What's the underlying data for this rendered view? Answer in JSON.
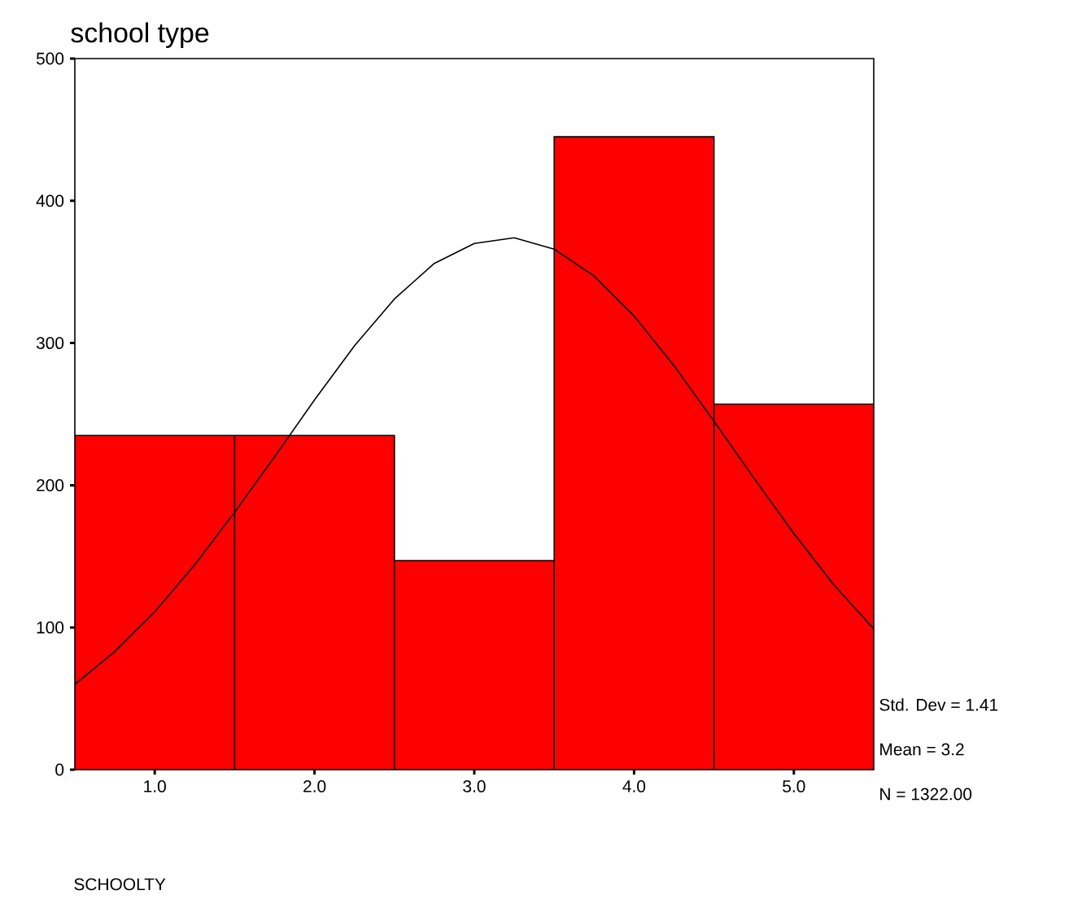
{
  "chart_data": {
    "type": "histogram",
    "title": "school type",
    "bins": [
      0.5,
      1.5,
      2.5,
      3.5,
      4.5,
      5.5
    ],
    "series": [
      {
        "color": "#ff0000",
        "values": [
          235,
          235,
          147,
          445,
          257
        ]
      },
      {
        "type": "line",
        "color": "#000000",
        "x": [
          0.5,
          0.75,
          1.0,
          1.25,
          1.5,
          1.75,
          2.0,
          2.25,
          2.5,
          2.75,
          3.0,
          3.25,
          3.5,
          3.75,
          4.0,
          4.25,
          4.5,
          4.75,
          5.0,
          5.25,
          5.5
        ],
        "values": [
          60,
          83,
          111,
          144,
          181,
          220,
          260,
          298,
          331,
          356,
          370,
          374,
          366,
          347,
          319,
          284,
          245,
          205,
          166,
          130,
          99
        ]
      }
    ],
    "xlim": [
      0.5,
      5.5
    ],
    "ylim": [
      0,
      500
    ],
    "xticks": [
      {
        "value": 1,
        "label": "1.0"
      },
      {
        "value": 2,
        "label": "2.0"
      },
      {
        "value": 3,
        "label": "3.0"
      },
      {
        "value": 4,
        "label": "4.0"
      },
      {
        "value": 5,
        "label": "5.0"
      }
    ],
    "yticks": [
      0,
      100,
      200,
      300,
      400,
      500
    ],
    "annotations": [
      "Std. Dev = 1.41",
      "Mean = 3.2",
      "N = 1322.00",
      "SCHOOLTY"
    ]
  }
}
